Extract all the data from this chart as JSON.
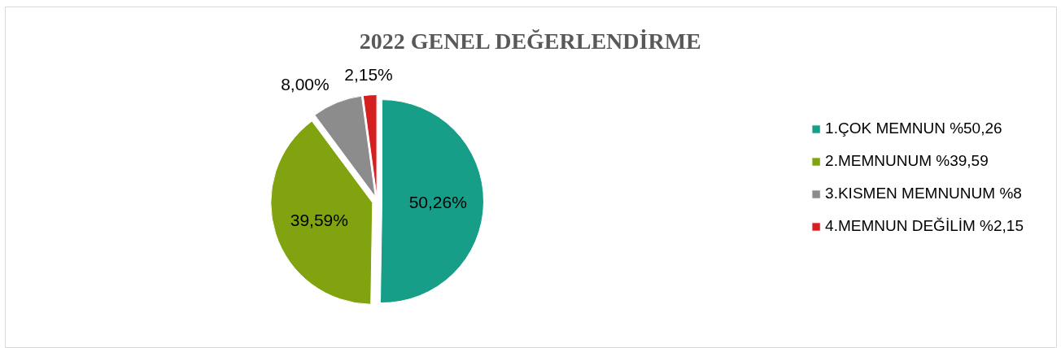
{
  "chart_data": {
    "type": "pie",
    "title": "2022 GENEL DEĞERLENDİRME",
    "categories": [
      "1.ÇOK MEMNUN %50,26",
      "2.MEMNUNUM %39,59",
      "3.KISMEN MEMNUNUM %8",
      "4.MEMNUN DEĞİLİM %2,15"
    ],
    "values": [
      50.26,
      39.59,
      8.0,
      2.15
    ],
    "colors": [
      "#179e88",
      "#80a30f",
      "#8c8c8c",
      "#d42020"
    ],
    "value_labels": [
      "50,26%",
      "39,59%",
      "8,00%",
      "2,15%"
    ],
    "legend": "right"
  }
}
